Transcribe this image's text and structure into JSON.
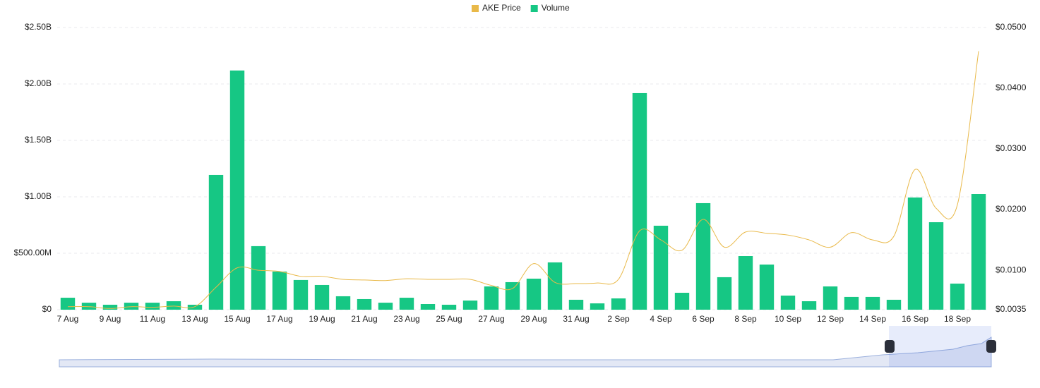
{
  "chart_data": {
    "type": "bar-line",
    "categories": [
      "7 Aug",
      null,
      "9 Aug",
      null,
      "11 Aug",
      null,
      "13 Aug",
      null,
      "15 Aug",
      null,
      "17 Aug",
      null,
      "19 Aug",
      null,
      "21 Aug",
      null,
      "23 Aug",
      null,
      "25 Aug",
      null,
      "27 Aug",
      null,
      "29 Aug",
      null,
      "31 Aug",
      null,
      "2 Sep",
      null,
      "4 Sep",
      null,
      "6 Sep",
      null,
      "8 Sep",
      null,
      "10 Sep",
      null,
      "12 Sep",
      null,
      "14 Sep",
      null,
      "16 Sep",
      null,
      "18 Sep",
      null
    ],
    "series": [
      {
        "name": "AKE Price",
        "color": "#e9b949",
        "axis": "y2",
        "kind": "line",
        "values": [
          0.004,
          0.004,
          0.0037,
          0.004,
          0.0039,
          0.0041,
          0.004,
          0.0072,
          0.0104,
          0.01,
          0.0098,
          0.009,
          0.009,
          0.0085,
          0.0084,
          0.0083,
          0.0086,
          0.0085,
          0.0085,
          0.0085,
          0.0075,
          0.007,
          0.0111,
          0.008,
          0.0078,
          0.0079,
          0.0085,
          0.0165,
          0.015,
          0.0133,
          0.0184,
          0.0138,
          0.0163,
          0.0161,
          0.0158,
          0.015,
          0.0138,
          0.0162,
          0.015,
          0.0156,
          0.0266,
          0.0202,
          0.0208,
          0.0461
        ]
      },
      {
        "name": "Volume",
        "color": "#16c784",
        "kind": "bar",
        "values": [
          106000000,
          62000000,
          44000000,
          62000000,
          62000000,
          75000000,
          44000000,
          1194000000,
          2119000000,
          563000000,
          338000000,
          263000000,
          219000000,
          119000000,
          94000000,
          62000000,
          106000000,
          50000000,
          44000000,
          81000000,
          206000000,
          244000000,
          275000000,
          419000000,
          88000000,
          56000000,
          100000000,
          1919000000,
          744000000,
          150000000,
          944000000,
          288000000,
          475000000,
          400000000,
          125000000,
          75000000,
          206000000,
          113000000,
          113000000,
          88000000,
          994000000,
          775000000,
          231000000,
          1025000000
        ]
      }
    ],
    "ylim": [
      0,
      2500000000
    ],
    "yticks": [
      {
        "value": 0,
        "label": "$0"
      },
      {
        "value": 500000000,
        "label": "$500.00M"
      },
      {
        "value": 1000000000,
        "label": "$1.00B"
      },
      {
        "value": 1500000000,
        "label": "$1.50B"
      },
      {
        "value": 2000000000,
        "label": "$2.00B"
      },
      {
        "value": 2500000000,
        "label": "$2.50B"
      }
    ],
    "y2lim": [
      0.0035,
      0.05
    ],
    "y2ticks": [
      {
        "value": 0.0035,
        "label": "$0.0035"
      },
      {
        "value": 0.01,
        "label": "$0.0100"
      },
      {
        "value": 0.02,
        "label": "$0.0200"
      },
      {
        "value": 0.03,
        "label": "$0.0300"
      },
      {
        "value": 0.04,
        "label": "$0.0400"
      },
      {
        "value": 0.05,
        "label": "$0.0500"
      }
    ],
    "grid": true,
    "legend": "top"
  }
}
